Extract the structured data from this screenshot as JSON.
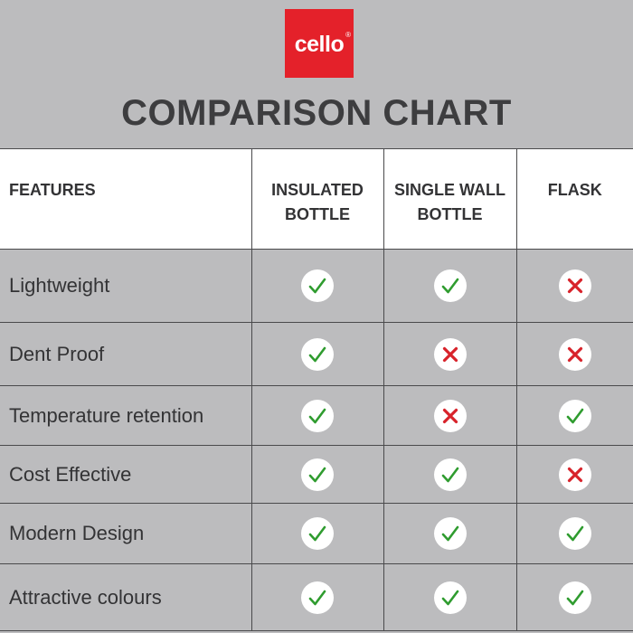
{
  "brand": {
    "logo_text": "cello",
    "registered_mark": "®"
  },
  "title": "COMPARISON CHART",
  "columns": [
    "FEATURES",
    "INSULATED BOTTLE",
    "SINGLE WALL BOTTLE",
    "FLASK"
  ],
  "rows": [
    {
      "feature": "Lightweight",
      "values": [
        true,
        true,
        false
      ]
    },
    {
      "feature": "Dent Proof",
      "values": [
        true,
        false,
        false
      ]
    },
    {
      "feature": "Temperature retention",
      "values": [
        true,
        false,
        true
      ]
    },
    {
      "feature": "Cost Effective",
      "values": [
        true,
        true,
        false
      ]
    },
    {
      "feature": "Modern Design",
      "values": [
        true,
        true,
        true
      ]
    },
    {
      "feature": "Attractive colours",
      "values": [
        true,
        true,
        true
      ]
    }
  ],
  "colors": {
    "check": "#2f9c2f",
    "cross": "#d8222a",
    "brand_red": "#e4212a",
    "background": "#bcbcbe"
  }
}
